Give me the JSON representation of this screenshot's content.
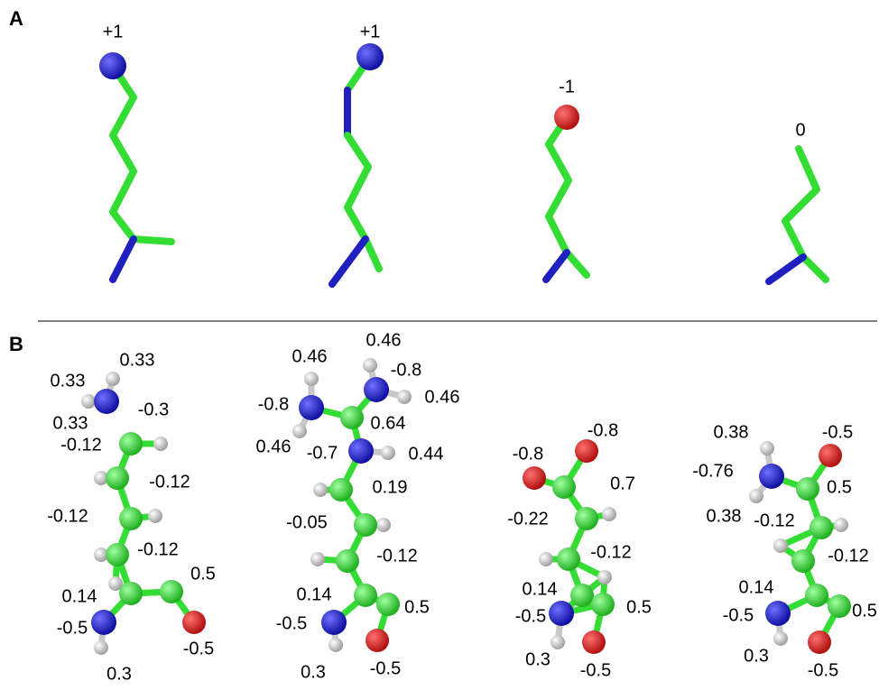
{
  "panel_a": {
    "label": "A",
    "molecules": [
      {
        "charge": "+1"
      },
      {
        "charge": "+1"
      },
      {
        "charge": "-1"
      },
      {
        "charge": "0"
      }
    ]
  },
  "panel_b": {
    "label": "B",
    "molecules": [
      {
        "labels": [
          "0.33",
          "0.33",
          "-0.3",
          "0.33",
          "-0.12",
          "-0.12",
          "-0.12",
          "-0.12",
          "0.5",
          "0.14",
          "-0.5",
          "-0.5",
          "0.3"
        ]
      },
      {
        "labels": [
          "0.46",
          "0.46",
          "-0.8",
          "-0.8",
          "0.46",
          "0.64",
          "0.46",
          "-0.7",
          "0.44",
          "0.19",
          "-0.05",
          "-0.12",
          "0.14",
          "-0.5",
          "0.5",
          "0.3",
          "-0.5"
        ]
      },
      {
        "labels": [
          "-0.8",
          "-0.8",
          "0.7",
          "-0.22",
          "-0.12",
          "0.14",
          "-0.5",
          "0.5",
          "0.3",
          "-0.5"
        ]
      },
      {
        "labels": [
          "0.38",
          "-0.5",
          "-0.76",
          "0.5",
          "0.38",
          "-0.12",
          "-0.12",
          "0.14",
          "-0.5",
          "0.5",
          "0.3",
          "-0.5"
        ]
      }
    ]
  }
}
